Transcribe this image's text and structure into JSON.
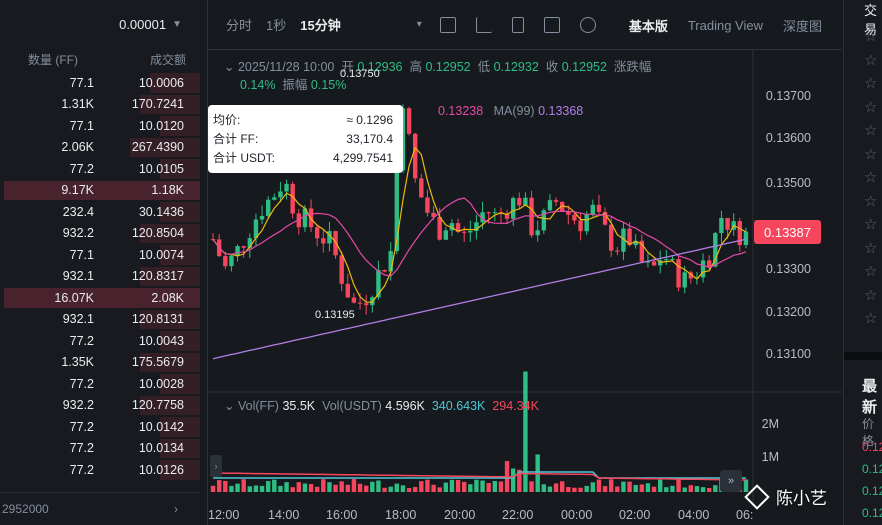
{
  "orderbook": {
    "precision": "0.00001",
    "col_qty": "数量 (FF)",
    "col_total": "成交额",
    "rows": [
      {
        "q": "77.1",
        "t": "10.0006",
        "d": 0.25
      },
      {
        "q": "1.31K",
        "t": "170.7241",
        "d": 0.3
      },
      {
        "q": "77.1",
        "t": "10.0120",
        "d": 0.2
      },
      {
        "q": "2.06K",
        "t": "267.4390",
        "d": 0.35
      },
      {
        "q": "77.2",
        "t": "10.0105",
        "d": 0.2
      },
      {
        "q": "9.17K",
        "t": "1.18K",
        "d": 1.0
      },
      {
        "q": "232.4",
        "t": "30.1436",
        "d": 0.2
      },
      {
        "q": "932.2",
        "t": "120.8504",
        "d": 0.3
      },
      {
        "q": "77.1",
        "t": "10.0074",
        "d": 0.2
      },
      {
        "q": "932.1",
        "t": "120.8317",
        "d": 0.3
      },
      {
        "q": "16.07K",
        "t": "2.08K",
        "d": 1.0
      },
      {
        "q": "932.1",
        "t": "120.8131",
        "d": 0.3
      },
      {
        "q": "77.2",
        "t": "10.0043",
        "d": 0.2
      },
      {
        "q": "1.35K",
        "t": "175.5679",
        "d": 0.3
      },
      {
        "q": "77.2",
        "t": "10.0028",
        "d": 0.2
      },
      {
        "q": "932.2",
        "t": "120.7758",
        "d": 0.3
      },
      {
        "q": "77.2",
        "t": "10.0142",
        "d": 0.2
      },
      {
        "q": "77.2",
        "t": "10.0134",
        "d": 0.2
      },
      {
        "q": "77.2",
        "t": "10.0126",
        "d": 0.2
      }
    ],
    "bottom_value": "2952000",
    "bottom_arrow": "›"
  },
  "toolbar": {
    "items": [
      "分时",
      "1秒",
      "15分钟"
    ],
    "active": "15分钟",
    "caret": "▾",
    "icons": [
      "calendar-icon",
      "line-chart-icon",
      "candle-type-icon",
      "indicator-icon",
      "settings-icon"
    ],
    "views": [
      "基本版",
      "Trading View",
      "深度图"
    ],
    "active_view": "基本版"
  },
  "ohlc": {
    "date": "2025/11/28 10:00",
    "open_label": "开",
    "open": "0.12936",
    "high_label": "高",
    "high": "0.12952",
    "low_label": "低",
    "low": "0.12932",
    "close_label": "收",
    "close": "0.12952",
    "change_label": "涨跌幅",
    "change": "0.14%",
    "amp_label": "振幅",
    "amp": "0.15%"
  },
  "ma": {
    "ma_a_value": "0.13238",
    "ma99_label": "MA(99)",
    "ma99_value": "0.13368"
  },
  "tooltip": {
    "avg_label": "均价:",
    "avg_value": "≈ 0.1296",
    "ff_label": "合计 FF:",
    "ff_value": "33,170.4",
    "usdt_label": "合计 USDT:",
    "usdt_value": "4,299.7541"
  },
  "price_axis": [
    "0.13700",
    "0.13600",
    "0.13500",
    "0.13300",
    "0.13200",
    "0.13100"
  ],
  "last_price": "0.13387",
  "high_marker": "0.13750",
  "low_marker": "0.13195",
  "volume": {
    "vol_label": "Vol(FF)",
    "vol_value": "35.5K",
    "usdt_label": "Vol(USDT)",
    "usdt_value": "4.596K",
    "ma_a": "340.643K",
    "ma_b": "294.34K",
    "axis": [
      "2M",
      "1M"
    ]
  },
  "time_axis": [
    "12:00",
    "14:00",
    "16:00",
    "18:00",
    "20:00",
    "22:00",
    "00:00",
    "02:00",
    "04:00",
    "06:"
  ],
  "watermark": "陈小艺",
  "right_panel": {
    "title": "交易",
    "section": "最新",
    "price_header": "价格",
    "prices": [
      {
        "v": "0.12",
        "c": "#f6465d"
      },
      {
        "v": "0.12",
        "c": "#2ebd85"
      },
      {
        "v": "0.12",
        "c": "#2ebd85"
      },
      {
        "v": "0.12",
        "c": "#2ebd85"
      }
    ]
  },
  "colors": {
    "up": "#2ebd85",
    "down": "#f6465d",
    "ma7": "#f0b90b",
    "ma25": "#e649a8",
    "ma99": "#b27fe8"
  }
}
